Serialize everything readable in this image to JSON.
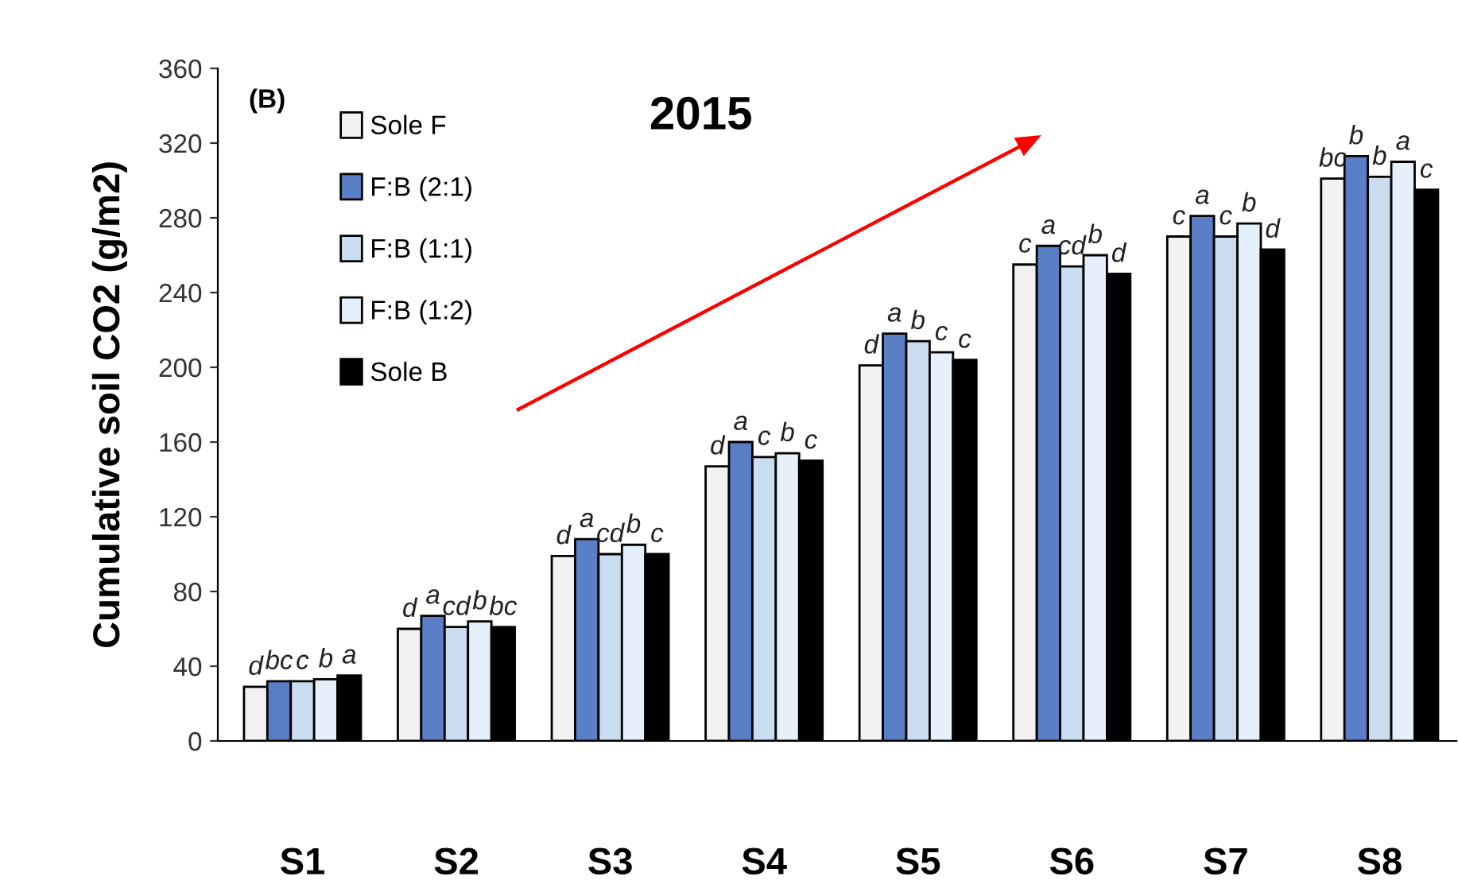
{
  "chart_data": {
    "type": "bar",
    "title": "2015",
    "ylabel": "Cumulative soil CO2 (g/m2)",
    "annotations": [
      "(B)"
    ],
    "categories": [
      "S1",
      "S2",
      "S3",
      "S4",
      "S5",
      "S6",
      "S7",
      "S8"
    ],
    "series": [
      {
        "name": "Sole F",
        "color": "#f2f2f2",
        "values": [
          29,
          60,
          99,
          147,
          201,
          255,
          270,
          301
        ],
        "value_labels": [
          "d",
          "d",
          "d",
          "d",
          "d",
          "c",
          "c",
          "bc"
        ]
      },
      {
        "name": "F:B (2:1)",
        "color": "#5b7fc7",
        "values": [
          32,
          67,
          108,
          160,
          218,
          265,
          281,
          313
        ],
        "value_labels": [
          "bc",
          "a",
          "a",
          "a",
          "a",
          "a",
          "a",
          "b"
        ]
      },
      {
        "name": "F:B (1:1)",
        "color": "#c9dcf0",
        "values": [
          32,
          61,
          100,
          152,
          214,
          254,
          270,
          302
        ],
        "value_labels": [
          "c",
          "cd",
          "cd",
          "c",
          "b",
          "cd",
          "c",
          "b"
        ]
      },
      {
        "name": "F:B (1:2)",
        "color": "#e6f0fa",
        "values": [
          33,
          64,
          105,
          154,
          208,
          260,
          277,
          310
        ],
        "value_labels": [
          "b",
          "b",
          "b",
          "b",
          "c",
          "b",
          "b",
          "a"
        ]
      },
      {
        "name": "Sole B",
        "color": "#000000",
        "values": [
          35,
          61,
          100,
          150,
          204,
          250,
          263,
          295
        ],
        "value_labels": [
          "a",
          "bc",
          "c",
          "c",
          "c",
          "d",
          "d",
          "c"
        ]
      }
    ],
    "ylim": [
      0,
      360
    ],
    "yticks": [
      0,
      40,
      80,
      120,
      160,
      200,
      240,
      280,
      320,
      360
    ],
    "grid": false,
    "legend": "top left"
  }
}
